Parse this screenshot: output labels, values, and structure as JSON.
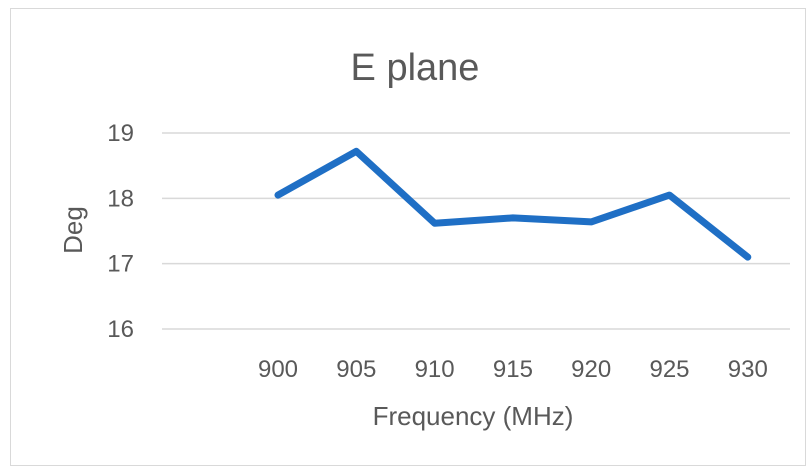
{
  "chart_data": {
    "type": "line",
    "title": "E plane",
    "xlabel": "Frequency (MHz)",
    "ylabel": "Deg",
    "categories": [
      "900",
      "905",
      "910",
      "915",
      "920",
      "925",
      "930"
    ],
    "series": [
      {
        "values": [
          18.05,
          18.72,
          17.62,
          17.7,
          17.64,
          18.05,
          17.1
        ],
        "color": "#1f6fc5"
      }
    ],
    "ylim": [
      16,
      19
    ],
    "yticks": [
      "16",
      "17",
      "18",
      "19"
    ],
    "grid": true,
    "legend": "none"
  }
}
